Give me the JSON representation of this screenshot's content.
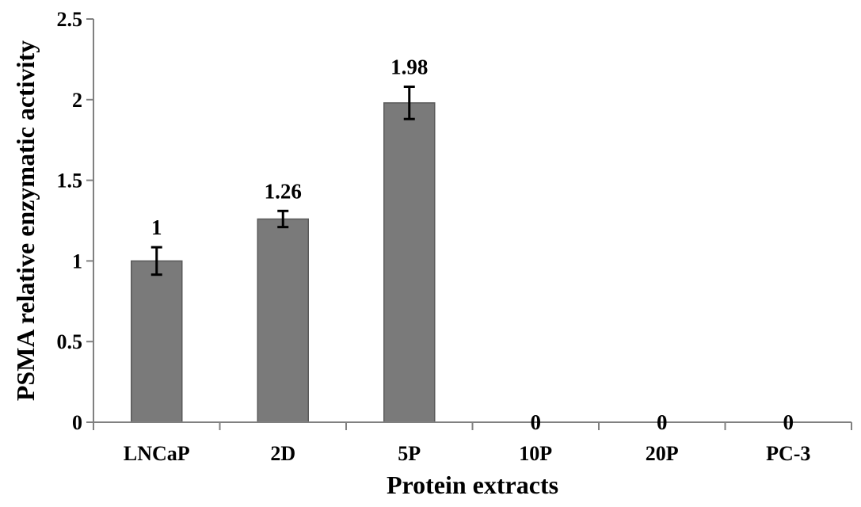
{
  "chart_data": {
    "type": "bar",
    "title": "",
    "xlabel": "Protein extracts",
    "ylabel": "PSMA relative enzymatic activity",
    "categories": [
      "LNCaP",
      "2D",
      "5P",
      "10P",
      "20P",
      "PC-3"
    ],
    "values": [
      1,
      1.26,
      1.98,
      0,
      0,
      0
    ],
    "error": [
      0.085,
      0.05,
      0.1,
      0,
      0,
      0
    ],
    "data_labels": [
      "1",
      "1.26",
      "1.98",
      "0",
      "0",
      "0"
    ],
    "ylim": [
      0,
      2.5
    ],
    "yticks": [
      0,
      0.5,
      1,
      1.5,
      2,
      2.5
    ],
    "ytick_labels": [
      "0",
      "0.5",
      "1",
      "1.5",
      "2",
      "2.5"
    ],
    "grid": false,
    "legend": "none",
    "colors": {
      "bar": "#7a7a7a",
      "bar_edge": "#5a5a5a",
      "axis": "#808080",
      "text": "#000000"
    }
  }
}
